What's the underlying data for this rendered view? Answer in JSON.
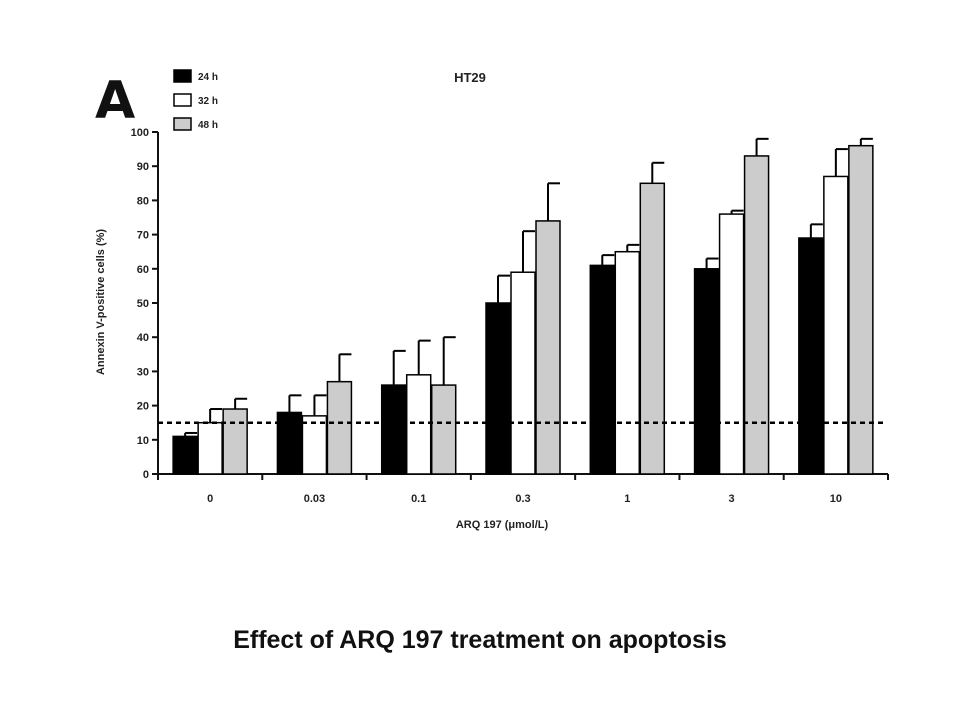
{
  "caption": "Effect of ARQ 197 treatment on apoptosis",
  "panel_letter": "A",
  "colors": {
    "24 h": "#000000",
    "32 h": "#ffffff",
    "48 h": "#cccccc",
    "axis": "#111111"
  },
  "chart_data": {
    "type": "bar",
    "title": "HT29",
    "xlabel": "ARQ 197 (μmol/L)",
    "ylabel": "Annexin V-positive cells (%)",
    "ylim": [
      0,
      100
    ],
    "yticks": [
      0,
      10,
      20,
      30,
      40,
      50,
      60,
      70,
      80,
      90,
      100
    ],
    "categories": [
      "0",
      "0.03",
      "0.1",
      "0.3",
      "1",
      "3",
      "10"
    ],
    "reference_line": 15,
    "legend": "top-left",
    "series": [
      {
        "name": "24 h",
        "values": [
          11,
          18,
          26,
          50,
          61,
          60,
          69
        ],
        "errors": [
          1,
          5,
          10,
          8,
          3,
          3,
          4
        ]
      },
      {
        "name": "32 h",
        "values": [
          15,
          17,
          29,
          59,
          65,
          76,
          87
        ],
        "errors": [
          4,
          6,
          10,
          12,
          2,
          1,
          8
        ]
      },
      {
        "name": "48 h",
        "values": [
          19,
          27,
          26,
          74,
          85,
          93,
          96
        ],
        "errors": [
          3,
          8,
          14,
          11,
          6,
          5,
          2
        ]
      }
    ]
  }
}
